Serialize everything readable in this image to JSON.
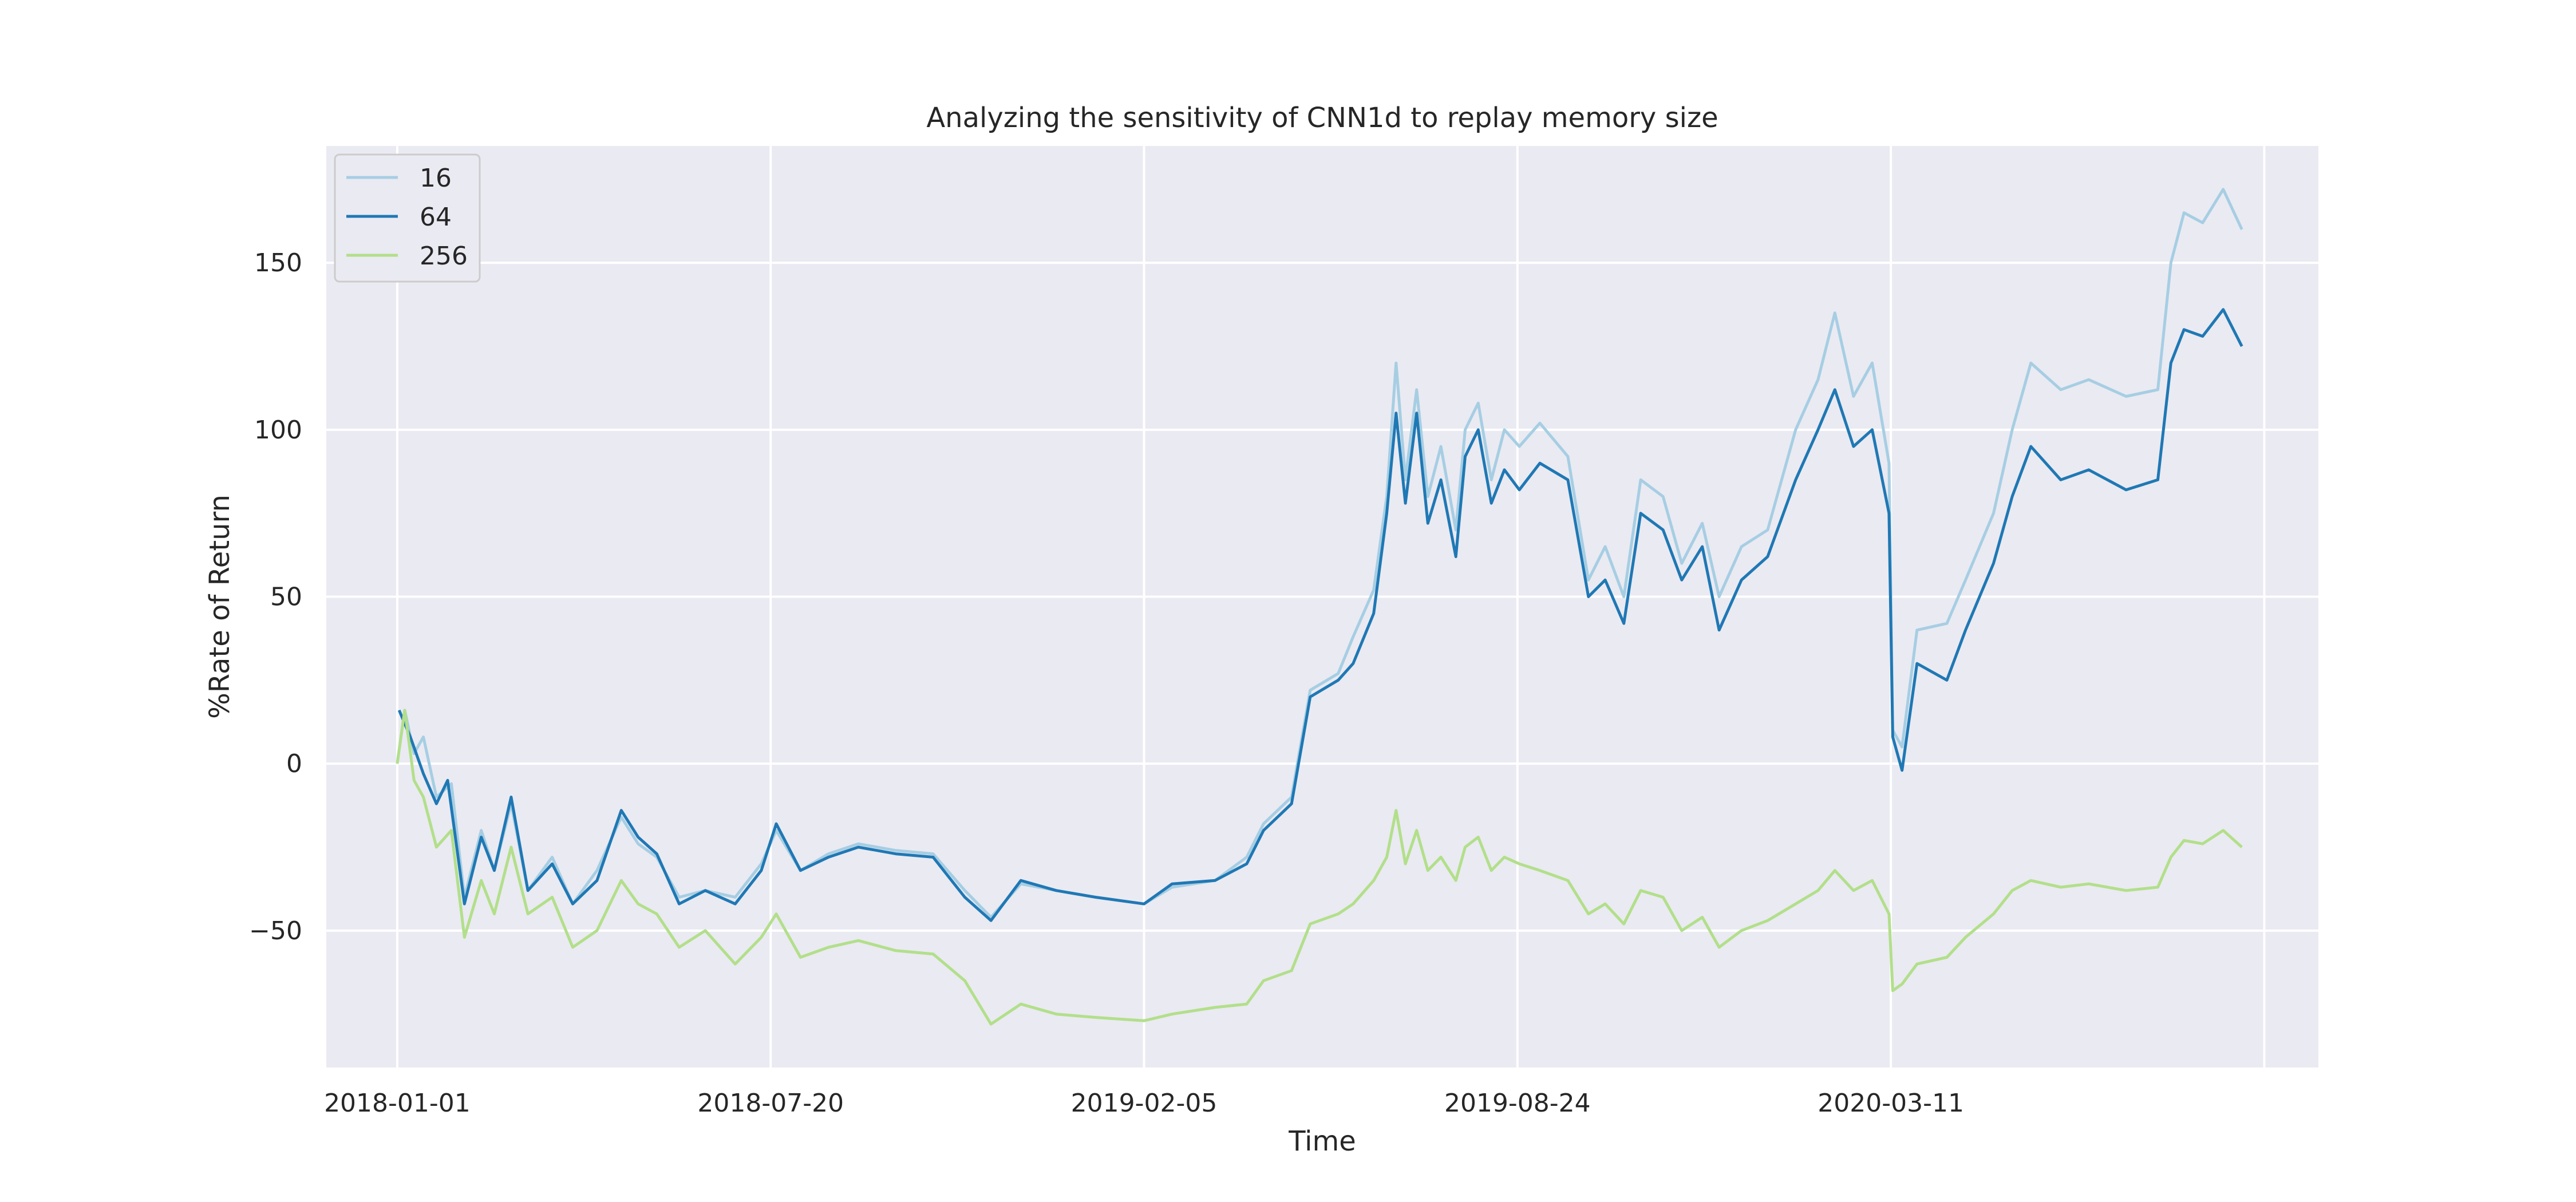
{
  "chart_data": {
    "type": "line",
    "title": "Analyzing the sensitivity of CNN1d to replay memory size",
    "xlabel": "Time",
    "ylabel": "%Rate of Return",
    "x_ticks": [
      "2018-01-01",
      "2018-07-20",
      "2019-02-05",
      "2019-08-24",
      "2020-03-11"
    ],
    "xlim": [
      "2017-11-24",
      "2020-10-26"
    ],
    "y_ticks": [
      -50,
      0,
      50,
      100,
      150
    ],
    "y_tick_labels": [
      "−50",
      "0",
      "50",
      "100",
      "150"
    ],
    "ylim": [
      -91,
      185
    ],
    "grid": true,
    "legend": {
      "placement": "top-left",
      "entries": [
        "16",
        "64",
        "256"
      ]
    },
    "colors": {
      "background": "#EAEAF2",
      "grid": "#FFFFFF",
      "s16": "#A6CEE3",
      "s64": "#1F78B4",
      "s256": "#B2DF8A"
    },
    "series": [
      {
        "name": "16",
        "color": "#A6CEE3",
        "points": [
          [
            "2018-01-01",
            0
          ],
          [
            "2018-01-05",
            16
          ],
          [
            "2018-01-10",
            3
          ],
          [
            "2018-01-15",
            8
          ],
          [
            "2018-01-22",
            -10
          ],
          [
            "2018-01-30",
            -6
          ],
          [
            "2018-02-06",
            -40
          ],
          [
            "2018-02-15",
            -20
          ],
          [
            "2018-02-22",
            -32
          ],
          [
            "2018-03-03",
            -12
          ],
          [
            "2018-03-12",
            -38
          ],
          [
            "2018-03-25",
            -28
          ],
          [
            "2018-04-05",
            -42
          ],
          [
            "2018-04-18",
            -32
          ],
          [
            "2018-05-01",
            -16
          ],
          [
            "2018-05-10",
            -24
          ],
          [
            "2018-05-20",
            -28
          ],
          [
            "2018-06-01",
            -40
          ],
          [
            "2018-06-15",
            -38
          ],
          [
            "2018-07-01",
            -40
          ],
          [
            "2018-07-15",
            -30
          ],
          [
            "2018-07-23",
            -20
          ],
          [
            "2018-08-05",
            -32
          ],
          [
            "2018-08-20",
            -27
          ],
          [
            "2018-09-05",
            -24
          ],
          [
            "2018-09-25",
            -26
          ],
          [
            "2018-10-15",
            -27
          ],
          [
            "2018-11-01",
            -38
          ],
          [
            "2018-11-15",
            -46
          ],
          [
            "2018-12-01",
            -36
          ],
          [
            "2018-12-20",
            -38
          ],
          [
            "2019-01-10",
            -40
          ],
          [
            "2019-02-05",
            -42
          ],
          [
            "2019-02-20",
            -37
          ],
          [
            "2019-03-15",
            -35
          ],
          [
            "2019-04-01",
            -28
          ],
          [
            "2019-04-10",
            -18
          ],
          [
            "2019-04-25",
            -10
          ],
          [
            "2019-05-05",
            22
          ],
          [
            "2019-05-20",
            27
          ],
          [
            "2019-05-28",
            38
          ],
          [
            "2019-06-08",
            52
          ],
          [
            "2019-06-15",
            80
          ],
          [
            "2019-06-20",
            120
          ],
          [
            "2019-06-25",
            85
          ],
          [
            "2019-07-01",
            112
          ],
          [
            "2019-07-07",
            80
          ],
          [
            "2019-07-14",
            95
          ],
          [
            "2019-07-22",
            70
          ],
          [
            "2019-07-27",
            100
          ],
          [
            "2019-08-03",
            108
          ],
          [
            "2019-08-10",
            85
          ],
          [
            "2019-08-17",
            100
          ],
          [
            "2019-08-25",
            95
          ],
          [
            "2019-09-05",
            102
          ],
          [
            "2019-09-20",
            92
          ],
          [
            "2019-10-01",
            55
          ],
          [
            "2019-10-10",
            65
          ],
          [
            "2019-10-20",
            50
          ],
          [
            "2019-10-29",
            85
          ],
          [
            "2019-11-10",
            80
          ],
          [
            "2019-11-20",
            60
          ],
          [
            "2019-12-01",
            72
          ],
          [
            "2019-12-10",
            50
          ],
          [
            "2019-12-22",
            65
          ],
          [
            "2020-01-05",
            70
          ],
          [
            "2020-01-20",
            100
          ],
          [
            "2020-02-01",
            115
          ],
          [
            "2020-02-10",
            135
          ],
          [
            "2020-02-20",
            110
          ],
          [
            "2020-03-01",
            120
          ],
          [
            "2020-03-10",
            90
          ],
          [
            "2020-03-12",
            10
          ],
          [
            "2020-03-17",
            5
          ],
          [
            "2020-03-25",
            40
          ],
          [
            "2020-04-10",
            42
          ],
          [
            "2020-04-20",
            55
          ],
          [
            "2020-05-05",
            75
          ],
          [
            "2020-05-15",
            100
          ],
          [
            "2020-05-25",
            120
          ],
          [
            "2020-06-10",
            112
          ],
          [
            "2020-06-25",
            115
          ],
          [
            "2020-07-15",
            110
          ],
          [
            "2020-08-01",
            112
          ],
          [
            "2020-08-08",
            150
          ],
          [
            "2020-08-15",
            165
          ],
          [
            "2020-08-25",
            162
          ],
          [
            "2020-09-05",
            172
          ],
          [
            "2020-09-15",
            160
          ]
        ]
      },
      {
        "name": "64",
        "color": "#1F78B4",
        "points": [
          [
            "2018-01-02",
            16
          ],
          [
            "2018-01-08",
            8
          ],
          [
            "2018-01-15",
            -3
          ],
          [
            "2018-01-22",
            -12
          ],
          [
            "2018-01-28",
            -5
          ],
          [
            "2018-02-06",
            -42
          ],
          [
            "2018-02-15",
            -22
          ],
          [
            "2018-02-22",
            -32
          ],
          [
            "2018-03-03",
            -10
          ],
          [
            "2018-03-12",
            -38
          ],
          [
            "2018-03-25",
            -30
          ],
          [
            "2018-04-05",
            -42
          ],
          [
            "2018-04-18",
            -35
          ],
          [
            "2018-05-01",
            -14
          ],
          [
            "2018-05-10",
            -22
          ],
          [
            "2018-05-20",
            -27
          ],
          [
            "2018-06-01",
            -42
          ],
          [
            "2018-06-15",
            -38
          ],
          [
            "2018-07-01",
            -42
          ],
          [
            "2018-07-15",
            -32
          ],
          [
            "2018-07-23",
            -18
          ],
          [
            "2018-08-05",
            -32
          ],
          [
            "2018-08-20",
            -28
          ],
          [
            "2018-09-05",
            -25
          ],
          [
            "2018-09-25",
            -27
          ],
          [
            "2018-10-15",
            -28
          ],
          [
            "2018-11-01",
            -40
          ],
          [
            "2018-11-15",
            -47
          ],
          [
            "2018-12-01",
            -35
          ],
          [
            "2018-12-20",
            -38
          ],
          [
            "2019-01-10",
            -40
          ],
          [
            "2019-02-05",
            -42
          ],
          [
            "2019-02-20",
            -36
          ],
          [
            "2019-03-15",
            -35
          ],
          [
            "2019-04-01",
            -30
          ],
          [
            "2019-04-10",
            -20
          ],
          [
            "2019-04-25",
            -12
          ],
          [
            "2019-05-05",
            20
          ],
          [
            "2019-05-20",
            25
          ],
          [
            "2019-05-28",
            30
          ],
          [
            "2019-06-08",
            45
          ],
          [
            "2019-06-15",
            75
          ],
          [
            "2019-06-20",
            105
          ],
          [
            "2019-06-25",
            78
          ],
          [
            "2019-07-01",
            105
          ],
          [
            "2019-07-07",
            72
          ],
          [
            "2019-07-14",
            85
          ],
          [
            "2019-07-22",
            62
          ],
          [
            "2019-07-27",
            92
          ],
          [
            "2019-08-03",
            100
          ],
          [
            "2019-08-10",
            78
          ],
          [
            "2019-08-17",
            88
          ],
          [
            "2019-08-25",
            82
          ],
          [
            "2019-09-05",
            90
          ],
          [
            "2019-09-20",
            85
          ],
          [
            "2019-10-01",
            50
          ],
          [
            "2019-10-10",
            55
          ],
          [
            "2019-10-20",
            42
          ],
          [
            "2019-10-29",
            75
          ],
          [
            "2019-11-10",
            70
          ],
          [
            "2019-11-20",
            55
          ],
          [
            "2019-12-01",
            65
          ],
          [
            "2019-12-10",
            40
          ],
          [
            "2019-12-22",
            55
          ],
          [
            "2020-01-05",
            62
          ],
          [
            "2020-01-20",
            85
          ],
          [
            "2020-02-01",
            100
          ],
          [
            "2020-02-10",
            112
          ],
          [
            "2020-02-20",
            95
          ],
          [
            "2020-03-01",
            100
          ],
          [
            "2020-03-10",
            75
          ],
          [
            "2020-03-12",
            8
          ],
          [
            "2020-03-17",
            -2
          ],
          [
            "2020-03-25",
            30
          ],
          [
            "2020-04-10",
            25
          ],
          [
            "2020-04-20",
            40
          ],
          [
            "2020-05-05",
            60
          ],
          [
            "2020-05-15",
            80
          ],
          [
            "2020-05-25",
            95
          ],
          [
            "2020-06-10",
            85
          ],
          [
            "2020-06-25",
            88
          ],
          [
            "2020-07-15",
            82
          ],
          [
            "2020-08-01",
            85
          ],
          [
            "2020-08-08",
            120
          ],
          [
            "2020-08-15",
            130
          ],
          [
            "2020-08-25",
            128
          ],
          [
            "2020-09-05",
            136
          ],
          [
            "2020-09-15",
            125
          ]
        ]
      },
      {
        "name": "256",
        "color": "#B2DF8A",
        "points": [
          [
            "2018-01-01",
            0
          ],
          [
            "2018-01-05",
            16
          ],
          [
            "2018-01-10",
            -5
          ],
          [
            "2018-01-15",
            -10
          ],
          [
            "2018-01-22",
            -25
          ],
          [
            "2018-01-30",
            -20
          ],
          [
            "2018-02-06",
            -52
          ],
          [
            "2018-02-15",
            -35
          ],
          [
            "2018-02-22",
            -45
          ],
          [
            "2018-03-03",
            -25
          ],
          [
            "2018-03-12",
            -45
          ],
          [
            "2018-03-25",
            -40
          ],
          [
            "2018-04-05",
            -55
          ],
          [
            "2018-04-18",
            -50
          ],
          [
            "2018-05-01",
            -35
          ],
          [
            "2018-05-10",
            -42
          ],
          [
            "2018-05-20",
            -45
          ],
          [
            "2018-06-01",
            -55
          ],
          [
            "2018-06-15",
            -50
          ],
          [
            "2018-07-01",
            -60
          ],
          [
            "2018-07-15",
            -52
          ],
          [
            "2018-07-23",
            -45
          ],
          [
            "2018-08-05",
            -58
          ],
          [
            "2018-08-20",
            -55
          ],
          [
            "2018-09-05",
            -53
          ],
          [
            "2018-09-25",
            -56
          ],
          [
            "2018-10-15",
            -57
          ],
          [
            "2018-11-01",
            -65
          ],
          [
            "2018-11-15",
            -78
          ],
          [
            "2018-12-01",
            -72
          ],
          [
            "2018-12-20",
            -75
          ],
          [
            "2019-01-10",
            -76
          ],
          [
            "2019-02-05",
            -77
          ],
          [
            "2019-02-20",
            -75
          ],
          [
            "2019-03-15",
            -73
          ],
          [
            "2019-04-01",
            -72
          ],
          [
            "2019-04-10",
            -65
          ],
          [
            "2019-04-25",
            -62
          ],
          [
            "2019-05-05",
            -48
          ],
          [
            "2019-05-20",
            -45
          ],
          [
            "2019-05-28",
            -42
          ],
          [
            "2019-06-08",
            -35
          ],
          [
            "2019-06-15",
            -28
          ],
          [
            "2019-06-20",
            -14
          ],
          [
            "2019-06-25",
            -30
          ],
          [
            "2019-07-01",
            -20
          ],
          [
            "2019-07-07",
            -32
          ],
          [
            "2019-07-14",
            -28
          ],
          [
            "2019-07-22",
            -35
          ],
          [
            "2019-07-27",
            -25
          ],
          [
            "2019-08-03",
            -22
          ],
          [
            "2019-08-10",
            -32
          ],
          [
            "2019-08-17",
            -28
          ],
          [
            "2019-08-25",
            -30
          ],
          [
            "2019-09-05",
            -32
          ],
          [
            "2019-09-20",
            -35
          ],
          [
            "2019-10-01",
            -45
          ],
          [
            "2019-10-10",
            -42
          ],
          [
            "2019-10-20",
            -48
          ],
          [
            "2019-10-29",
            -38
          ],
          [
            "2019-11-10",
            -40
          ],
          [
            "2019-11-20",
            -50
          ],
          [
            "2019-12-01",
            -46
          ],
          [
            "2019-12-10",
            -55
          ],
          [
            "2019-12-22",
            -50
          ],
          [
            "2020-01-05",
            -47
          ],
          [
            "2020-01-20",
            -42
          ],
          [
            "2020-02-01",
            -38
          ],
          [
            "2020-02-10",
            -32
          ],
          [
            "2020-02-20",
            -38
          ],
          [
            "2020-03-01",
            -35
          ],
          [
            "2020-03-10",
            -45
          ],
          [
            "2020-03-12",
            -68
          ],
          [
            "2020-03-17",
            -66
          ],
          [
            "2020-03-25",
            -60
          ],
          [
            "2020-04-10",
            -58
          ],
          [
            "2020-04-20",
            -52
          ],
          [
            "2020-05-05",
            -45
          ],
          [
            "2020-05-15",
            -38
          ],
          [
            "2020-05-25",
            -35
          ],
          [
            "2020-06-10",
            -37
          ],
          [
            "2020-06-25",
            -36
          ],
          [
            "2020-07-15",
            -38
          ],
          [
            "2020-08-01",
            -37
          ],
          [
            "2020-08-08",
            -28
          ],
          [
            "2020-08-15",
            -23
          ],
          [
            "2020-08-25",
            -24
          ],
          [
            "2020-09-05",
            -20
          ],
          [
            "2020-09-15",
            -25
          ]
        ]
      }
    ]
  }
}
